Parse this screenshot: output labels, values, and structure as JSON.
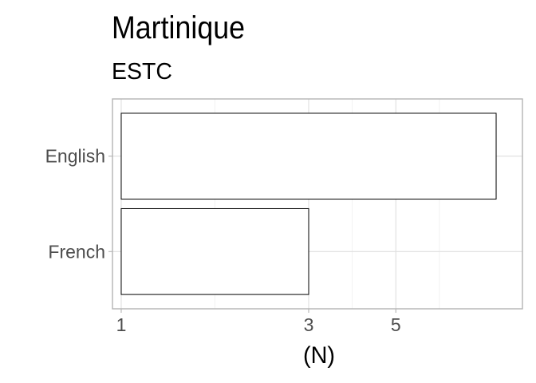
{
  "chart_data": {
    "type": "bar",
    "orientation": "horizontal",
    "title": "Martinique",
    "subtitle": "ESTC",
    "xlabel": "(N)",
    "ylabel": "",
    "x_scale": "log",
    "x_ticks": [
      1,
      3,
      5
    ],
    "xlim": [
      0.95,
      10.5
    ],
    "grid": true,
    "categories": [
      "English",
      "French"
    ],
    "values": [
      9,
      3
    ],
    "bar_fill": "#ffffff",
    "bar_stroke": "#000000"
  }
}
